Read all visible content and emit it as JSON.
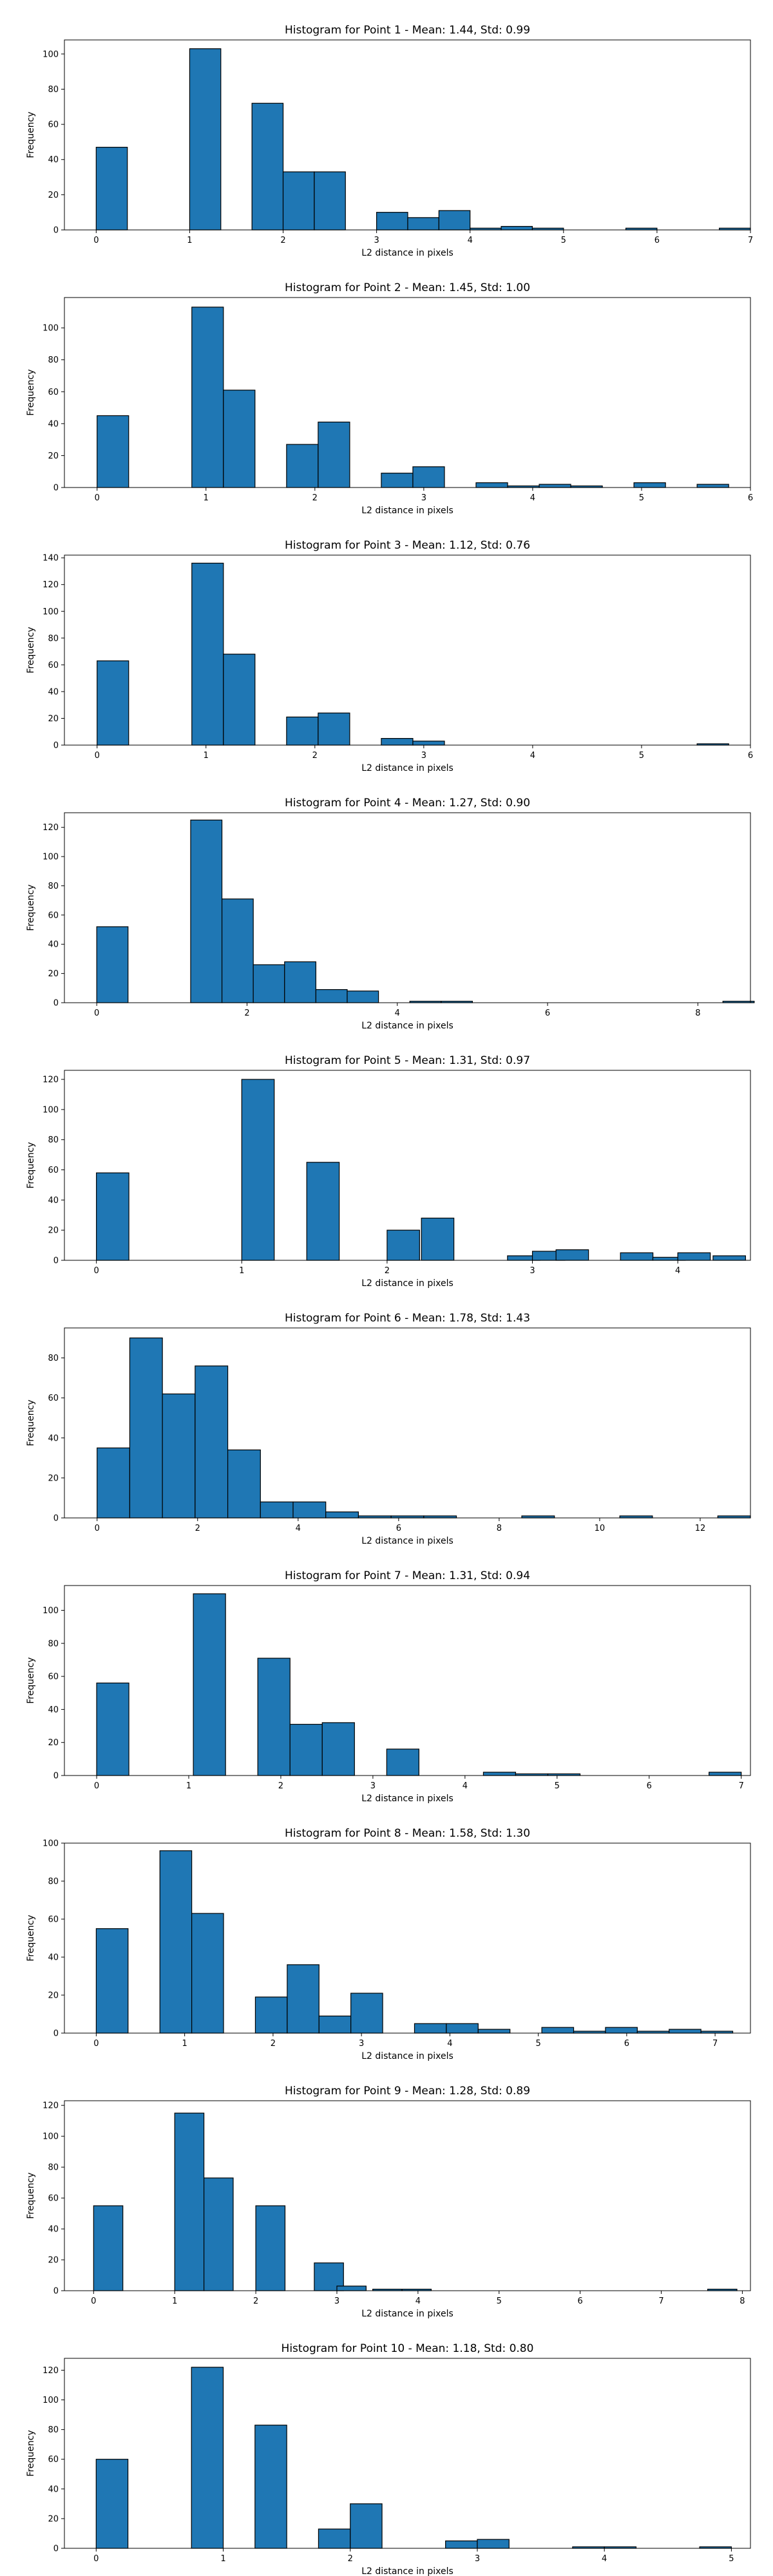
{
  "chart_data": [
    {
      "type": "bar",
      "title": "Histogram for Point 1 - Mean: 1.44, Std: 0.99",
      "xlabel": "L2 distance in pixels",
      "ylabel": "Frequency",
      "xlim": [
        -0.34,
        7.0
      ],
      "ylim": [
        0,
        108
      ],
      "xticks": [
        0,
        1,
        2,
        3,
        4,
        5,
        6,
        7
      ],
      "yticks": [
        0,
        20,
        40,
        60,
        80,
        100
      ],
      "bin_width": 0.3333,
      "x": [
        0.0,
        0.6667,
        1.0,
        1.3333,
        1.6667,
        2.0,
        2.3333,
        2.6667,
        3.0,
        3.3333,
        3.6667,
        4.0,
        4.3333,
        4.6667,
        5.0,
        5.3333,
        5.6667,
        6.0,
        6.3333,
        6.6667
      ],
      "values": [
        47,
        0,
        103,
        0,
        72,
        33,
        33,
        0,
        10,
        7,
        11,
        1,
        2,
        1,
        0,
        0,
        1,
        0,
        0,
        1
      ]
    },
    {
      "type": "bar",
      "title": "Histogram for Point 2 - Mean: 1.45, Std: 1.00",
      "xlabel": "L2 distance in pixels",
      "ylabel": "Frequency",
      "xlim": [
        -0.3,
        6.0
      ],
      "ylim": [
        0,
        119
      ],
      "xticks": [
        0,
        1,
        2,
        3,
        4,
        5,
        6
      ],
      "yticks": [
        0,
        20,
        40,
        60,
        80,
        100
      ],
      "bin_width": 0.29,
      "x": [
        0.0,
        0.58,
        0.87,
        1.16,
        1.45,
        1.74,
        2.03,
        2.32,
        2.61,
        2.9,
        3.19,
        3.48,
        3.77,
        4.06,
        4.35,
        4.64,
        4.93,
        5.22,
        5.51,
        5.8
      ],
      "values": [
        45,
        0,
        113,
        61,
        0,
        27,
        41,
        0,
        9,
        13,
        0,
        3,
        1,
        2,
        1,
        0,
        3,
        0,
        2,
        0
      ]
    },
    {
      "type": "bar",
      "title": "Histogram for Point 3 - Mean: 1.12, Std: 0.76",
      "xlabel": "L2 distance in pixels",
      "ylabel": "Frequency",
      "xlim": [
        -0.3,
        6.0
      ],
      "ylim": [
        0,
        142
      ],
      "xticks": [
        0,
        1,
        2,
        3,
        4,
        5,
        6
      ],
      "yticks": [
        0,
        20,
        40,
        60,
        80,
        100,
        120,
        140
      ],
      "bin_width": 0.29,
      "x": [
        0.0,
        0.58,
        0.87,
        1.16,
        1.45,
        1.74,
        2.03,
        2.32,
        2.61,
        2.9,
        3.19,
        3.48,
        3.77,
        4.06,
        4.35,
        4.64,
        4.93,
        5.22,
        5.51,
        5.8
      ],
      "values": [
        63,
        0,
        136,
        68,
        0,
        21,
        24,
        0,
        5,
        3,
        0,
        0,
        0,
        0,
        0,
        0,
        0,
        0,
        1,
        0
      ]
    },
    {
      "type": "bar",
      "title": "Histogram for Point 4 - Mean: 1.27, Std: 0.90",
      "xlabel": "L2 distance in pixels",
      "ylabel": "Frequency",
      "xlim": [
        -0.43,
        8.7
      ],
      "ylim": [
        0,
        130
      ],
      "xticks": [
        0,
        2,
        4,
        6,
        8
      ],
      "yticks": [
        0,
        20,
        40,
        60,
        80,
        100,
        120
      ],
      "bin_width": 0.4167,
      "x": [
        0.0,
        0.8333,
        1.25,
        1.6667,
        2.0833,
        2.5,
        2.9167,
        3.3333,
        3.75,
        4.1667,
        4.5833,
        5.0,
        5.4167,
        5.8333,
        6.25,
        6.6667,
        7.0833,
        7.5,
        7.9167,
        8.3333
      ],
      "values": [
        52,
        0,
        125,
        71,
        26,
        28,
        9,
        8,
        0,
        1,
        1,
        0,
        0,
        0,
        0,
        0,
        0,
        0,
        0,
        1
      ]
    },
    {
      "type": "bar",
      "title": "Histogram for Point 5 - Mean: 1.31, Std: 0.97",
      "xlabel": "L2 distance in pixels",
      "ylabel": "Frequency",
      "xlim": [
        -0.22,
        4.5
      ],
      "ylim": [
        0,
        126
      ],
      "xticks": [
        0,
        1,
        2,
        3,
        4
      ],
      "yticks": [
        0,
        20,
        40,
        60,
        80,
        100,
        120
      ],
      "bin_width": 0.2236,
      "x": [
        0.0,
        1.0,
        1.4472,
        2.0,
        2.2361,
        2.8284,
        3.0,
        3.1623,
        3.6056,
        3.8284,
        4.0,
        4.2426
      ],
      "values": [
        58,
        120,
        65,
        20,
        28,
        3,
        6,
        7,
        5,
        2,
        5,
        3
      ]
    },
    {
      "type": "bar",
      "title": "Histogram for Point 6 - Mean: 1.78, Std: 1.43",
      "xlabel": "L2 distance in pixels",
      "ylabel": "Frequency",
      "xlim": [
        -0.65,
        13.0
      ],
      "ylim": [
        0,
        95
      ],
      "xticks": [
        0,
        2,
        4,
        6,
        8,
        10,
        12
      ],
      "yticks": [
        0,
        20,
        40,
        60,
        80
      ],
      "bin_width": 0.65,
      "x": [
        0.0,
        0.65,
        1.3,
        1.95,
        2.6,
        3.25,
        3.9,
        4.55,
        5.2,
        5.85,
        6.5,
        7.15,
        7.8,
        8.45,
        9.1,
        9.75,
        10.4,
        11.05,
        11.7,
        12.35
      ],
      "values": [
        35,
        90,
        62,
        76,
        34,
        8,
        8,
        3,
        1,
        1,
        1,
        0,
        0,
        1,
        0,
        0,
        1,
        0,
        0,
        1
      ]
    },
    {
      "type": "bar",
      "title": "Histogram for Point 7 - Mean: 1.31, Std: 0.94",
      "xlabel": "L2 distance in pixels",
      "ylabel": "Frequency",
      "xlim": [
        -0.35,
        7.1
      ],
      "ylim": [
        0,
        115
      ],
      "xticks": [
        0,
        1,
        2,
        3,
        4,
        5,
        6,
        7
      ],
      "yticks": [
        0,
        20,
        40,
        60,
        80,
        100
      ],
      "bin_width": 0.35,
      "x": [
        0.0,
        0.7,
        1.05,
        1.4,
        1.75,
        2.1,
        2.45,
        2.8,
        3.15,
        3.5,
        3.85,
        4.2,
        4.55,
        4.9,
        5.25,
        5.6,
        5.95,
        6.3,
        6.65
      ],
      "values": [
        56,
        0,
        110,
        0,
        71,
        31,
        32,
        0,
        16,
        0,
        0,
        2,
        1,
        1,
        0,
        0,
        0,
        0,
        2
      ]
    },
    {
      "type": "bar",
      "title": "Histogram for Point 8 - Mean: 1.58, Std: 1.30",
      "xlabel": "L2 distance in pixels",
      "ylabel": "Frequency",
      "xlim": [
        -0.36,
        7.4
      ],
      "ylim": [
        0,
        100
      ],
      "xticks": [
        0,
        1,
        2,
        3,
        4,
        5,
        6,
        7
      ],
      "yticks": [
        0,
        20,
        40,
        60,
        80,
        100
      ],
      "bin_width": 0.36,
      "x": [
        0.0,
        0.72,
        1.08,
        1.44,
        1.8,
        2.16,
        2.52,
        2.88,
        3.24,
        3.6,
        3.96,
        4.32,
        4.68,
        5.04,
        5.4,
        5.76,
        6.12,
        6.48,
        6.84
      ],
      "values": [
        55,
        96,
        63,
        0,
        19,
        36,
        9,
        21,
        0,
        5,
        5,
        2,
        0,
        3,
        1,
        3,
        1,
        2,
        1
      ]
    },
    {
      "type": "bar",
      "title": "Histogram for Point 9 - Mean: 1.28, Std: 0.89",
      "xlabel": "L2 distance in pixels",
      "ylabel": "Frequency",
      "xlim": [
        -0.36,
        8.1
      ],
      "ylim": [
        0,
        123
      ],
      "xticks": [
        0,
        1,
        2,
        3,
        4,
        5,
        6,
        7,
        8
      ],
      "yticks": [
        0,
        20,
        40,
        60,
        80,
        100,
        120
      ],
      "bin_width": 0.3606,
      "x": [
        0.0,
        1.0,
        1.3606,
        2.0,
        2.7212,
        3.0,
        3.4424,
        3.803,
        7.5726
      ],
      "values": [
        55,
        115,
        73,
        55,
        18,
        3,
        1,
        1,
        1
      ]
    },
    {
      "type": "bar",
      "title": "Histogram for Point 10 - Mean: 1.18, Std: 0.80",
      "xlabel": "L2 distance in pixels",
      "ylabel": "Frequency",
      "xlim": [
        -0.25,
        5.15
      ],
      "ylim": [
        0,
        128
      ],
      "xticks": [
        0,
        1,
        2,
        3,
        4,
        5
      ],
      "yticks": [
        0,
        20,
        40,
        60,
        80,
        100,
        120
      ],
      "bin_width": 0.25,
      "x": [
        0.0,
        0.75,
        1.25,
        1.75,
        2.0,
        2.75,
        3.0,
        3.75,
        4.0,
        4.75
      ],
      "values": [
        60,
        122,
        83,
        13,
        30,
        5,
        6,
        1,
        1,
        1
      ]
    }
  ]
}
